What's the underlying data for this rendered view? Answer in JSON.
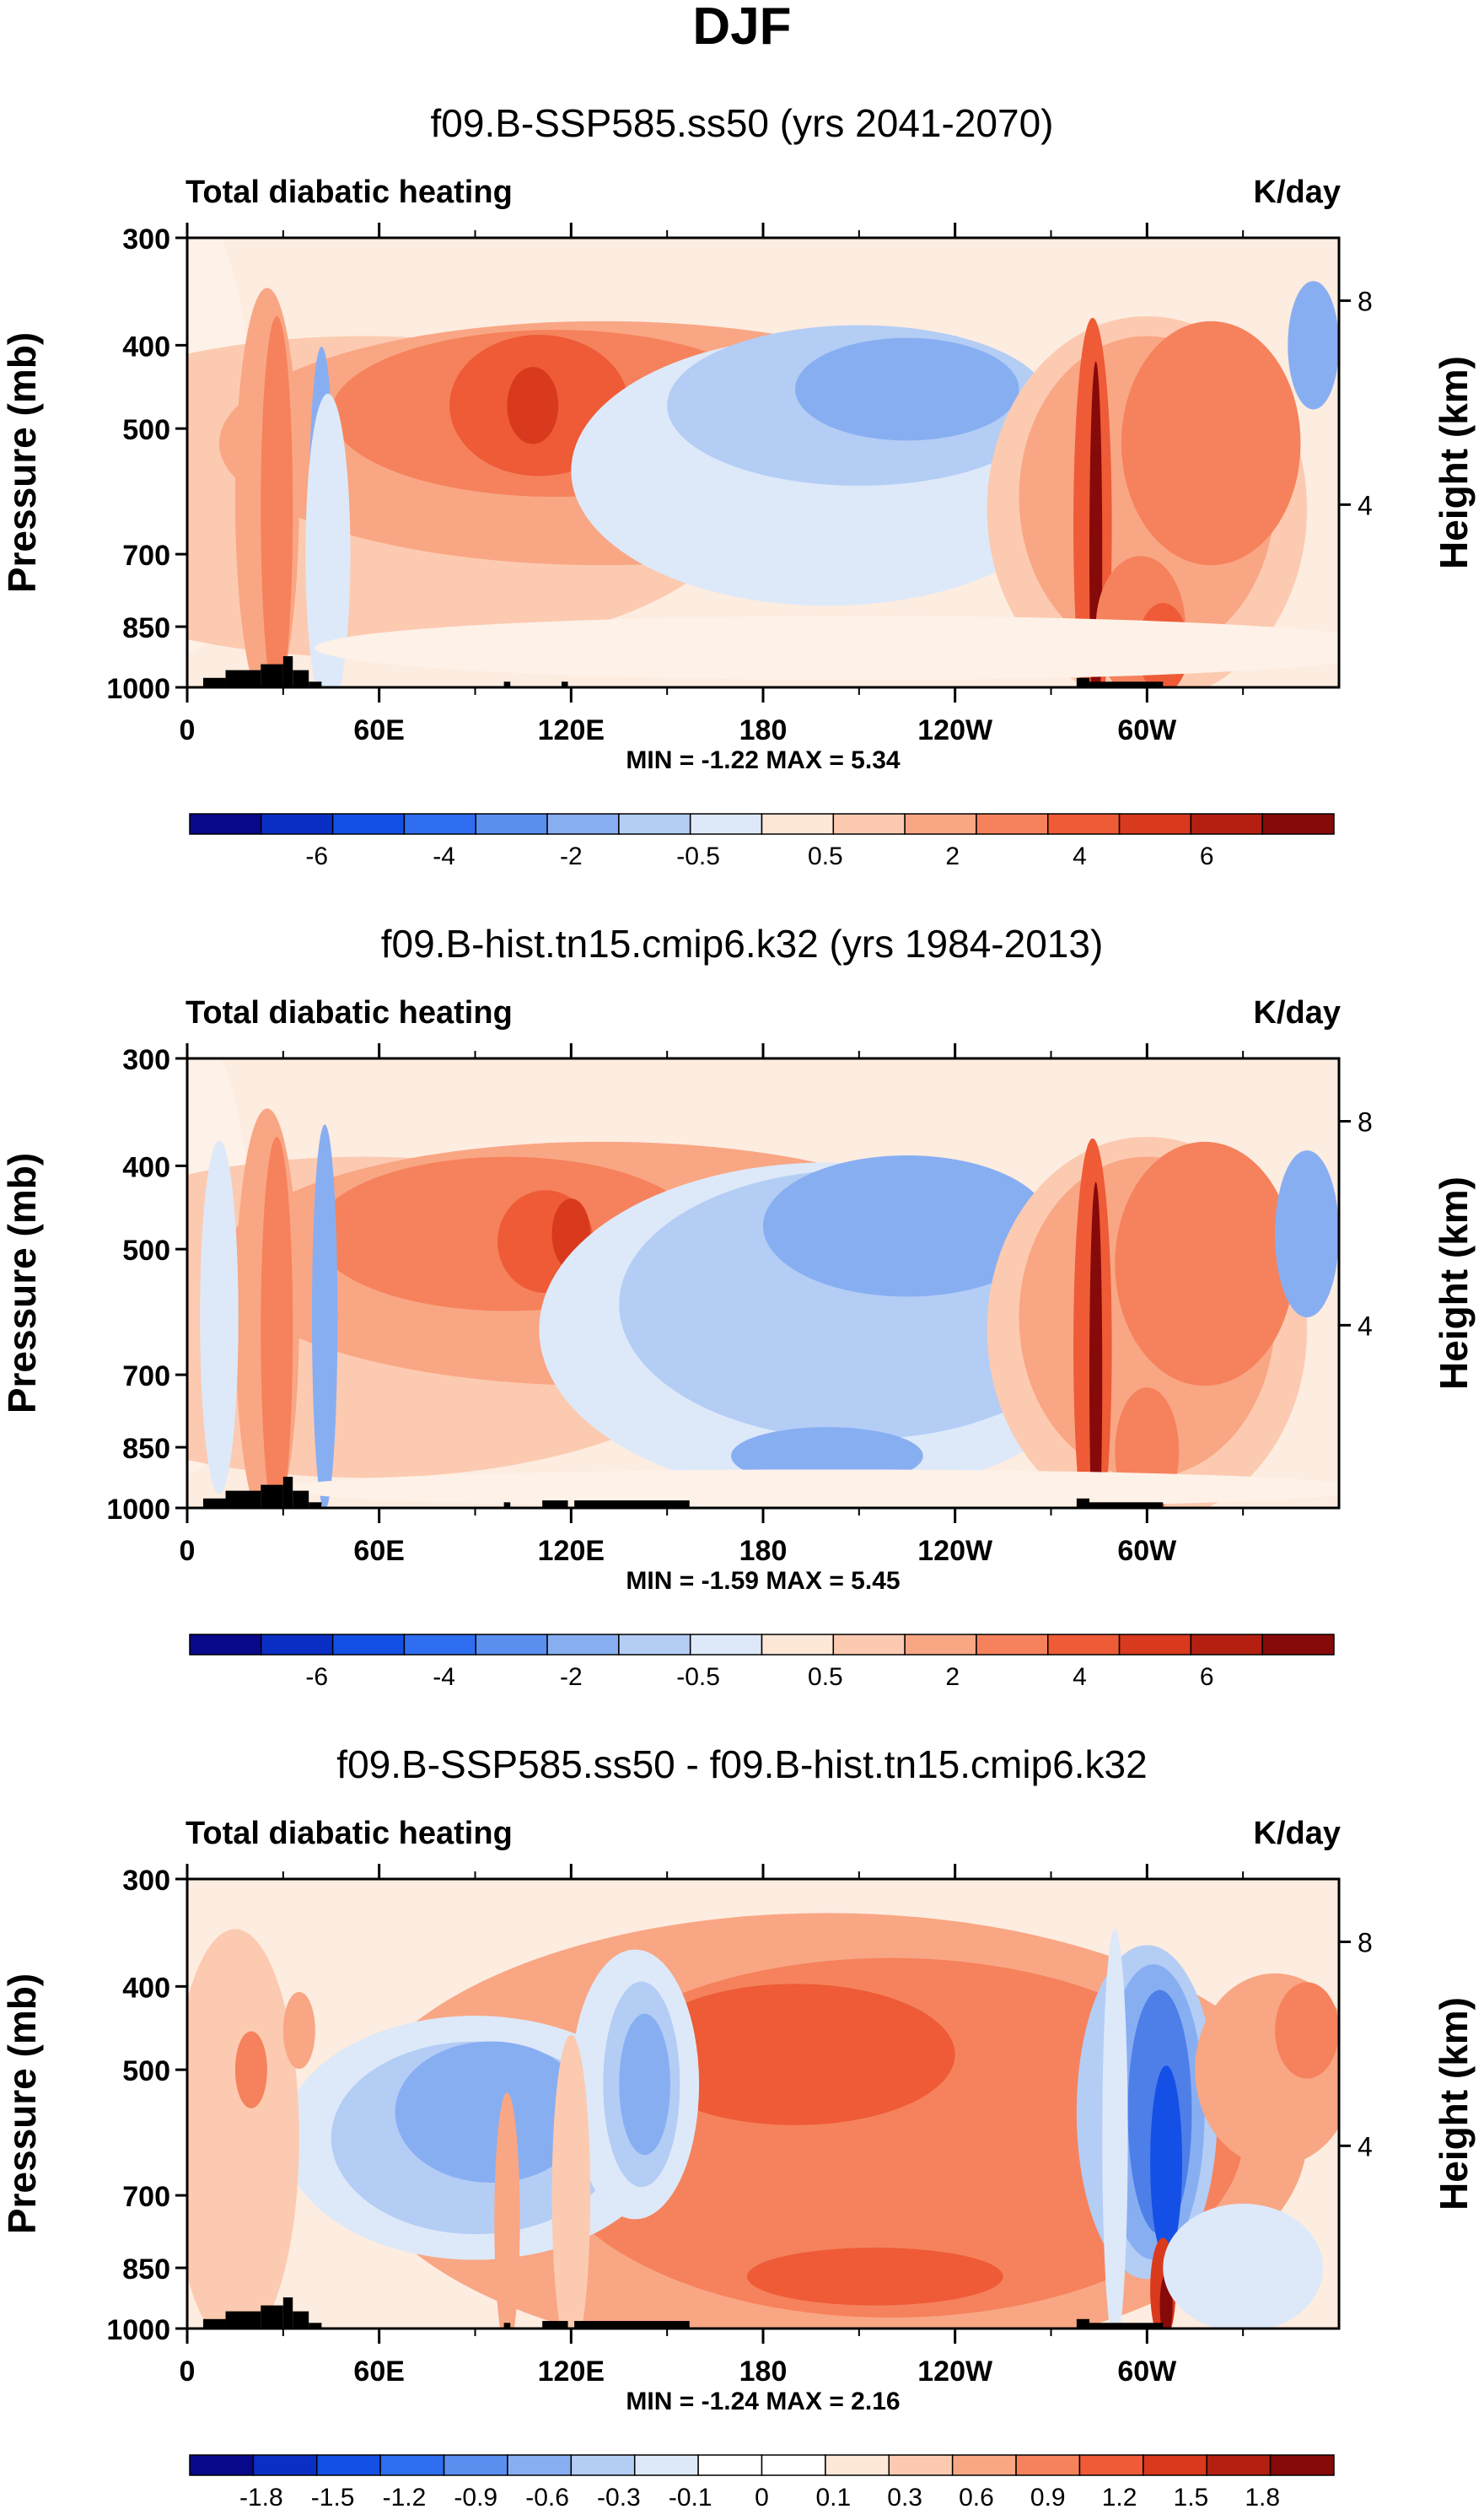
{
  "figure_title": "DJF",
  "chart_data": [
    {
      "type": "heatmap",
      "title": "f09.B-SSP585.ss50 (yrs 2041-2070)",
      "left_label": "Total diabatic heating",
      "units": "K/day",
      "ylabel": "Pressure (mb)",
      "ylabel_right": "Height (km)",
      "yticks": [
        "300",
        "400",
        "500",
        "700",
        "850",
        "1000"
      ],
      "yticks_right": [
        "8",
        "4"
      ],
      "xticks": [
        "0",
        "60E",
        "120E",
        "180",
        "120W",
        "60W"
      ],
      "stats": "MIN =  -1.22  MAX =   5.34",
      "colorbar_labels": [
        "-6",
        "-4",
        "-2",
        "-0.5",
        "0.5",
        "2",
        "4",
        "6"
      ]
    },
    {
      "type": "heatmap",
      "title": "f09.B-hist.tn15.cmip6.k32 (yrs 1984-2013)",
      "left_label": "Total diabatic heating",
      "units": "K/day",
      "ylabel": "Pressure (mb)",
      "ylabel_right": "Height (km)",
      "yticks": [
        "300",
        "400",
        "500",
        "700",
        "850",
        "1000"
      ],
      "yticks_right": [
        "8",
        "4"
      ],
      "xticks": [
        "0",
        "60E",
        "120E",
        "180",
        "120W",
        "60W"
      ],
      "stats": "MIN =  -1.59  MAX =   5.45",
      "colorbar_labels": [
        "-6",
        "-4",
        "-2",
        "-0.5",
        "0.5",
        "2",
        "4",
        "6"
      ]
    },
    {
      "type": "heatmap",
      "title": "f09.B-SSP585.ss50 - f09.B-hist.tn15.cmip6.k32",
      "left_label": "Total diabatic heating",
      "units": "K/day",
      "ylabel": "Pressure (mb)",
      "ylabel_right": "Height (km)",
      "yticks": [
        "300",
        "400",
        "500",
        "700",
        "850",
        "1000"
      ],
      "yticks_right": [
        "8",
        "4"
      ],
      "xticks": [
        "0",
        "60E",
        "120E",
        "180",
        "120W",
        "60W"
      ],
      "stats": "MIN =  -1.24  MAX =   2.16",
      "colorbar_labels": [
        "-1.8",
        "-1.5",
        "-1.2",
        "-0.9",
        "-0.6",
        "-0.3",
        "-0.1",
        "0",
        "0.1",
        "0.3",
        "0.6",
        "0.9",
        "1.2",
        "1.5",
        "1.8"
      ]
    }
  ],
  "colors": {
    "colorbar_16": [
      "#08088a",
      "#0b2fc4",
      "#1450e6",
      "#2f6ef0",
      "#5a8ff0",
      "#88aef2",
      "#b4cdf5",
      "#dde9f9",
      "#fde7d7",
      "#fccab0",
      "#f9a684",
      "#f5825c",
      "#ee5b36",
      "#d9391c",
      "#b32012",
      "#870a0a"
    ],
    "colorbar_18": [
      "#08088a",
      "#0b2fc4",
      "#1450e6",
      "#2f6ef0",
      "#5a8ff0",
      "#88aef2",
      "#b4cdf5",
      "#dde9f9",
      "#ffffff",
      "#ffffff",
      "#fde7d7",
      "#fccab0",
      "#f9a684",
      "#f5825c",
      "#ee5b36",
      "#d9391c",
      "#b32012",
      "#870a0a"
    ],
    "topography": "#000000",
    "plot_bg": "#fdece0"
  }
}
